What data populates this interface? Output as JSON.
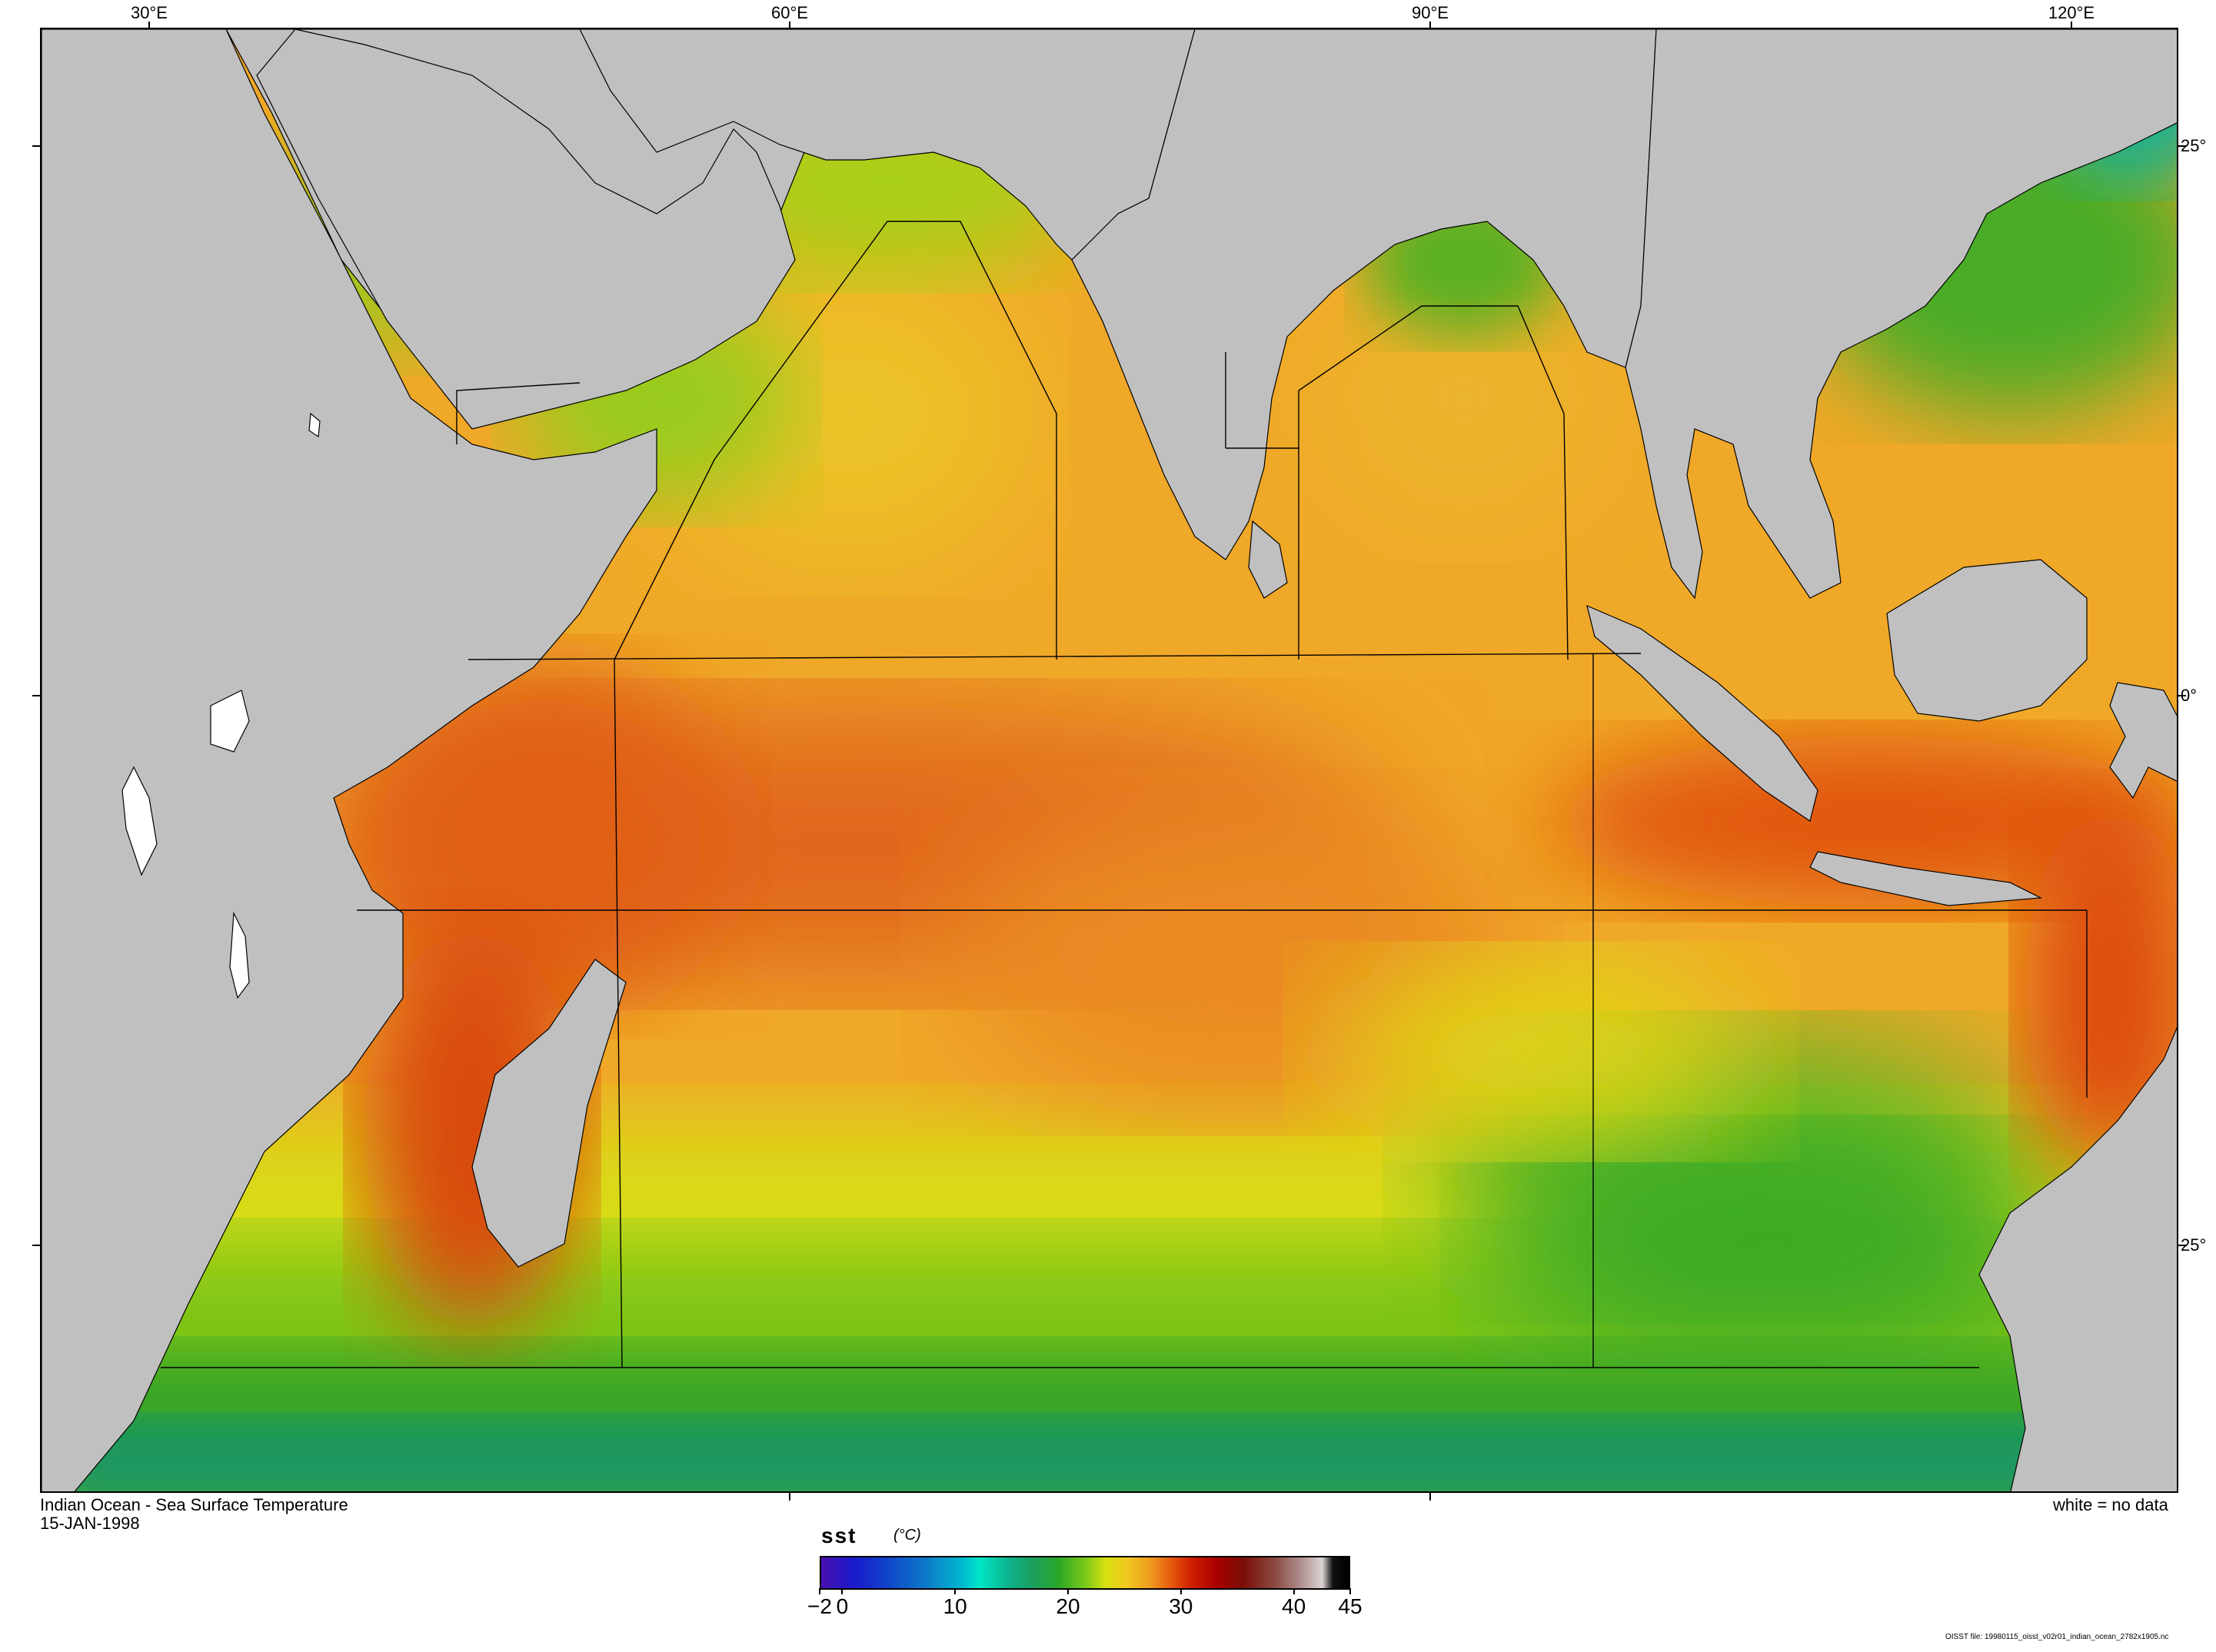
{
  "map": {
    "title": "Indian Ocean - Sea Surface Temperature",
    "date": "15-JAN-1998",
    "no_data_note": "white = no data",
    "lon_labels": [
      "30°E",
      "60°E",
      "90°E",
      "120°E"
    ],
    "lat_labels": [
      "25°",
      "0°",
      "25°"
    ],
    "land_color": "#c0c0c0",
    "no_data_color": "#ffffff",
    "boundary_color": "#000000"
  },
  "colorbar": {
    "variable": "sst",
    "unit": "(°C)",
    "range": [
      -2,
      45
    ],
    "tick_labels": [
      "−2",
      "0",
      "10",
      "20",
      "30",
      "40",
      "45"
    ],
    "tick_values": [
      -2,
      0,
      10,
      20,
      30,
      40,
      45
    ]
  },
  "footer": {
    "source_file": "OISST file: 19980115_oisst_v02r01_indian_ocean_2782x1905.nc"
  }
}
